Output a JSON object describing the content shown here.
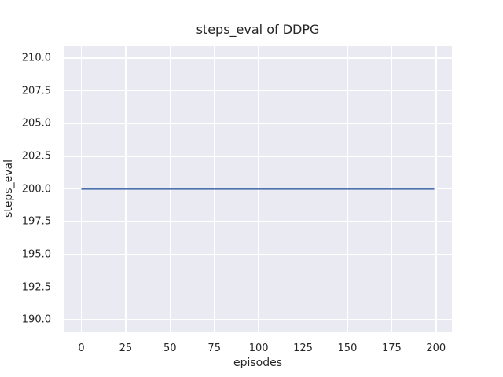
{
  "chart_data": {
    "type": "line",
    "title": "steps_eval of DDPG",
    "xlabel": "episodes",
    "ylabel": "steps_eval",
    "xlim": [
      -9.95,
      208.95
    ],
    "ylim": [
      189.05,
      210.95
    ],
    "x_ticks": [
      0,
      25,
      50,
      75,
      100,
      125,
      150,
      175,
      200
    ],
    "x_tick_labels": [
      "0",
      "25",
      "50",
      "75",
      "100",
      "125",
      "150",
      "175",
      "200"
    ],
    "y_ticks": [
      190.0,
      192.5,
      195.0,
      197.5,
      200.0,
      202.5,
      205.0,
      207.5,
      210.0
    ],
    "y_tick_labels": [
      "190.0",
      "192.5",
      "195.0",
      "197.5",
      "200.0",
      "202.5",
      "205.0",
      "207.5",
      "210.0"
    ],
    "grid": true,
    "legend": "none",
    "styles": {
      "figure_background": "#ffffff",
      "plot_background": "#eaeaf2",
      "grid_color": "#ffffff",
      "text_color": "#262626",
      "line_color": "#4c72b0"
    },
    "series": [
      {
        "name": "DDPG steps_eval",
        "color": "#4c72b0",
        "x": [
          0,
          199
        ],
        "y": [
          200.0,
          200.0
        ]
      }
    ]
  }
}
